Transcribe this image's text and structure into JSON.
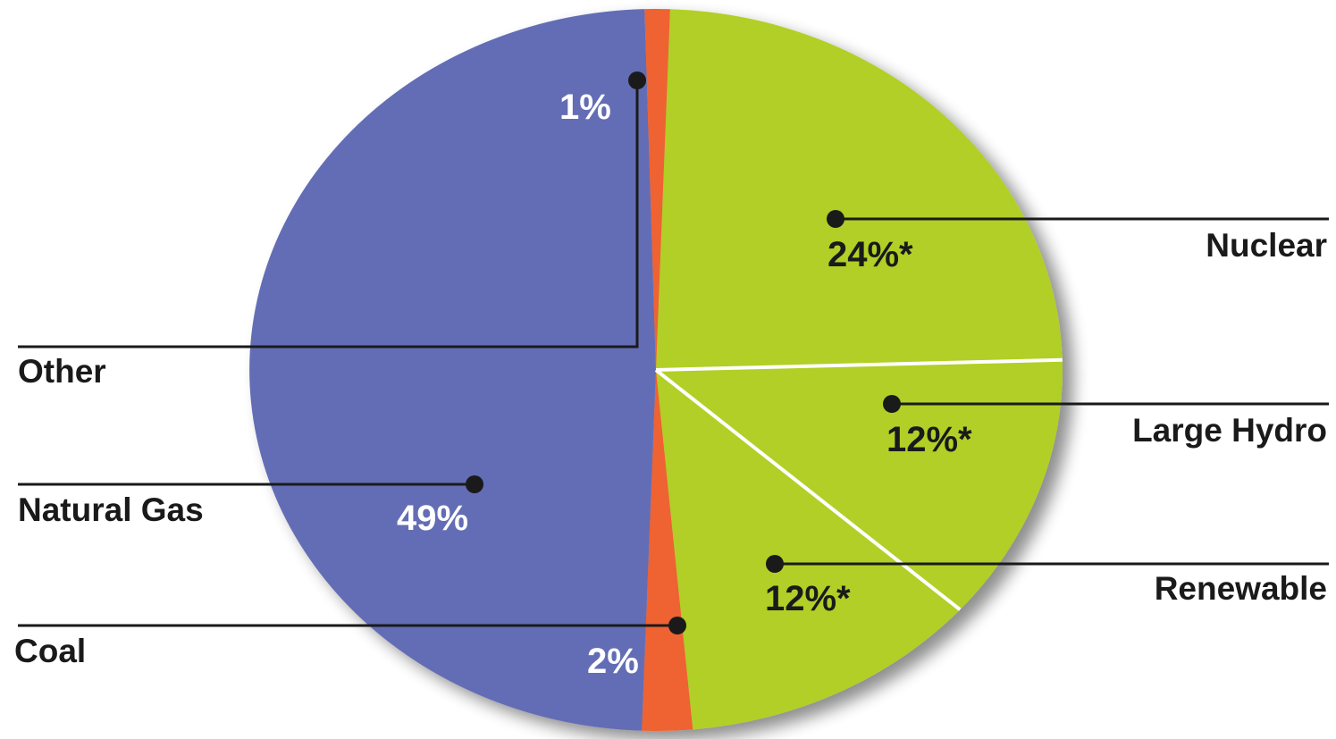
{
  "chart_data": {
    "type": "pie",
    "slices": [
      {
        "label": "Nuclear",
        "value": 24,
        "value_label": "24%*",
        "color": "#b1cf27",
        "label_color": "#1a1a1a"
      },
      {
        "label": "Large Hydro",
        "value": 12,
        "value_label": "12%*",
        "color": "#b1cf27",
        "label_color": "#1a1a1a"
      },
      {
        "label": "Renewable",
        "value": 12,
        "value_label": "12%*",
        "color": "#b1cf27",
        "label_color": "#1a1a1a"
      },
      {
        "label": "Coal",
        "value": 2,
        "value_label": "2%",
        "color": "#ef6230",
        "label_color": "#ffffff"
      },
      {
        "label": "Natural Gas",
        "value": 49,
        "value_label": "49%",
        "color": "#646db5",
        "label_color": "#ffffff"
      },
      {
        "label": "Other",
        "value": 1,
        "value_label": "1%",
        "color": "#ef6230",
        "label_color": "#ffffff"
      }
    ],
    "divider_color": "#ffffff",
    "leader_color": "#1a1a1a"
  }
}
